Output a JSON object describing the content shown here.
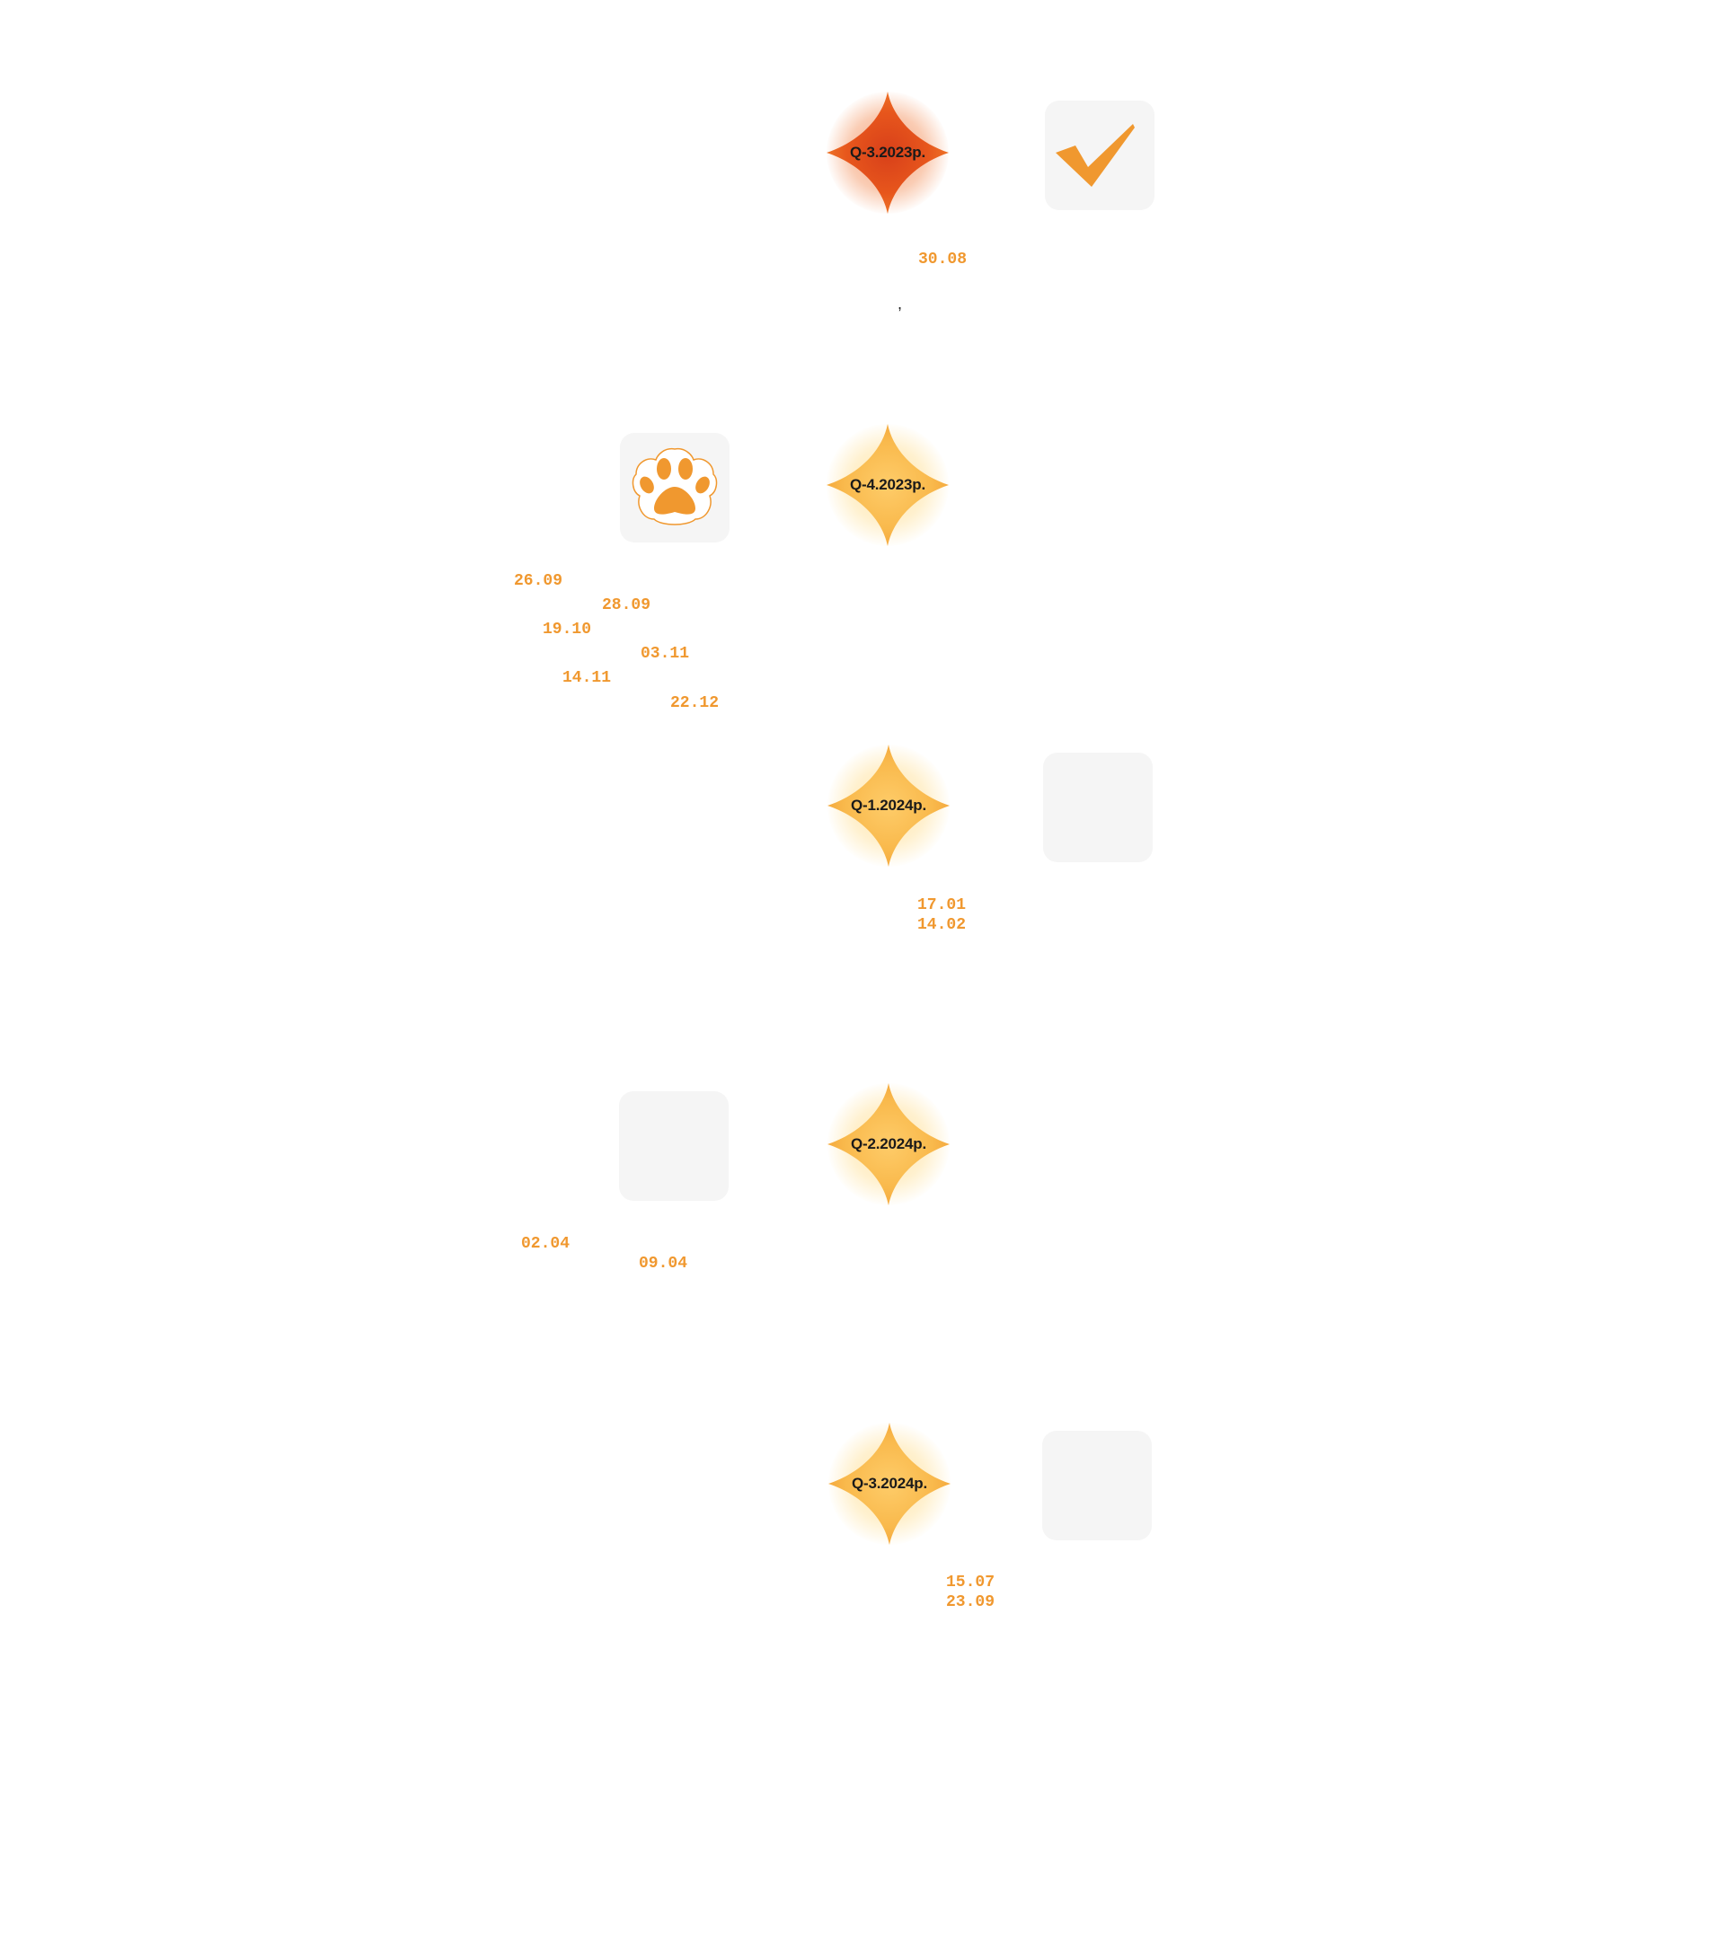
{
  "colors": {
    "accent": "#f0982f",
    "active_star_center": "#e04e17",
    "future_star_center": "#fdc866",
    "card_background": "#f5f5f5"
  },
  "milestones": [
    {
      "label": "Q-3.2023р.",
      "state": "active"
    },
    {
      "label": "Q-4.2023р.",
      "state": "future"
    },
    {
      "label": "Q-1.2024р.",
      "state": "future"
    },
    {
      "label": "Q-2.2024р.",
      "state": "future"
    },
    {
      "label": "Q-3.2024р.",
      "state": "future"
    }
  ],
  "cards": [
    {
      "icon": "checkmark-icon"
    },
    {
      "icon": "paw-icon"
    },
    {
      "icon": ""
    },
    {
      "icon": ""
    },
    {
      "icon": ""
    }
  ],
  "stray_text": ",",
  "dates": {
    "q3_2023": [
      "30.08"
    ],
    "q4_2023": [
      "26.09",
      "28.09",
      "19.10",
      "03.11",
      "14.11",
      "22.12"
    ],
    "q1_2024": [
      "17.01",
      "14.02"
    ],
    "q2_2024": [
      "02.04",
      "09.04"
    ],
    "q3_2024": [
      "15.07",
      "23.09"
    ]
  }
}
